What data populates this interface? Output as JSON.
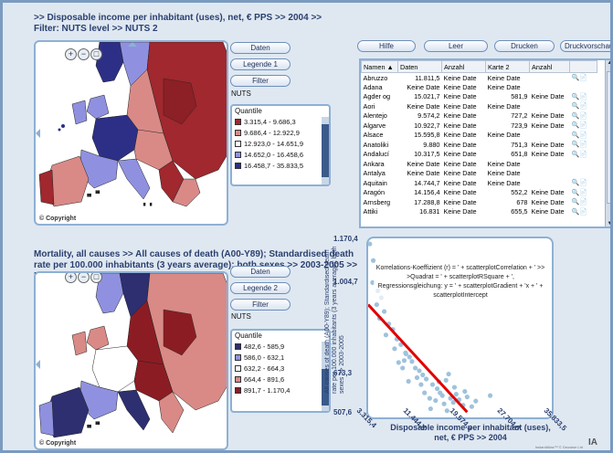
{
  "header": {
    "title_line1": ">> Disposable income per inhabitant (uses), net, € PPS >>  2004 >>",
    "title_line2": "Filter:  NUTS level >>  NUTS 2"
  },
  "toolbar": {
    "help": "Hilfe",
    "empty": "Leer",
    "print": "Drucken",
    "print_preview": "Druckvorschau"
  },
  "map1": {
    "buttons": {
      "data": "Daten",
      "legend": "Legende 1",
      "filter": "Filter"
    },
    "filter_value": "NUTS",
    "legend_title": "Quantile",
    "legend_items": [
      {
        "label": "3.315,4 - 9.686,3",
        "color": "#a0282e"
      },
      {
        "label": "9.686,4 - 12.922,9",
        "color": "#d98a86"
      },
      {
        "label": "12.923,0 - 14.651,9",
        "color": "#ffffff"
      },
      {
        "label": "14.652,0 - 16.458,6",
        "color": "#8f91e0"
      },
      {
        "label": "16.458,7 - 35.833,5",
        "color": "#2d2f86"
      }
    ],
    "copyright": "© Copyright"
  },
  "table": {
    "columns": [
      "Namen ▲",
      "Daten",
      "Anzahl",
      "Karte 2",
      "Anzahl"
    ],
    "rows": [
      [
        "Abruzzo",
        "11.811,5",
        "Keine Date",
        "Keine Date",
        ""
      ],
      [
        "Adana",
        "Keine Date",
        "Keine Date",
        "Keine Date",
        ""
      ],
      [
        "Agder og",
        "15.021,7",
        "Keine Date",
        "581,9",
        "Keine Date"
      ],
      [
        "Aori",
        "Keine Date",
        "Keine Date",
        "Keine Date",
        ""
      ],
      [
        "Alentejo",
        "9.574,2",
        "Keine Date",
        "727,2",
        "Keine Date"
      ],
      [
        "Algarve",
        "10.922,7",
        "Keine Date",
        "723,9",
        "Keine Date"
      ],
      [
        "Alsace",
        "15.595,8",
        "Keine Date",
        "Keine Date",
        ""
      ],
      [
        "Anatoliki",
        "9.880",
        "Keine Date",
        "751,3",
        "Keine Date"
      ],
      [
        "Andalucí",
        "10.317,5",
        "Keine Date",
        "651,8",
        "Keine Date"
      ],
      [
        "Ankara",
        "Keine Date",
        "Keine Date",
        "Keine Date",
        ""
      ],
      [
        "Antalya",
        "Keine Date",
        "Keine Date",
        "Keine Date",
        ""
      ],
      [
        "Aquitain",
        "14.744,7",
        "Keine Date",
        "Keine Date",
        ""
      ],
      [
        "Aragón",
        "14.156,4",
        "Keine Date",
        "552,2",
        "Keine Date"
      ],
      [
        "Arnsberg",
        "17.288,8",
        "Keine Date",
        "678",
        "Keine Date"
      ],
      [
        "Attiki",
        "16.831",
        "Keine Date",
        "655,5",
        "Keine Date"
      ]
    ]
  },
  "header2": {
    "title": "Mortality, all causes >> All causes of death (A00-Y89); Standardised death rate per 100.000 inhabitants (3 years average); both sexes >>  2003-2005 >> Filter:  NUTS level >>  NUTS 2"
  },
  "map2": {
    "buttons": {
      "data": "Daten",
      "legend": "Legende 2",
      "filter": "Filter"
    },
    "filter_value": "NUTS",
    "legend_title": "Quantile",
    "legend_items": [
      {
        "label": "482,6 - 585,9",
        "color": "#2d2f70"
      },
      {
        "label": "586,0 - 632,1",
        "color": "#8f91e0"
      },
      {
        "label": "632,2 - 664,3",
        "color": "#ffffff"
      },
      {
        "label": "664,4 - 891,6",
        "color": "#d98a86"
      },
      {
        "label": "891,7 - 1.170,4",
        "color": "#8c1c24"
      }
    ],
    "copyright": "© Copyright"
  },
  "scatter": {
    "formula_text": "Korrelations-Koeffizient (r) = ' + scatterplotCorrelation + ' >> >Quadrat = ' + scatterplotRSquare + ', Regressionsgleichung: y = ' + scatterplotGradient + 'x + ' + scatterplotIntercept",
    "y_axis_label": "All causes of death (A00-Y89); Standardised death rate per 100.000 inhabitants (3 years average); both sexes >> 2003-2005",
    "x_axis_label": "Disposable income per inhabitant (uses), net, € PPS >>  2004",
    "y_ticks": [
      "1.170,4",
      "1.004,7",
      "673,3",
      "507,6"
    ],
    "x_ticks": [
      "3.315,4",
      "11.444,8",
      "19.574,3",
      "27.704,0",
      "35.833,5"
    ]
  },
  "footer": {
    "credit": "InstantAtlas™  © Geowise Ltd"
  },
  "chart_data": {
    "type": "scatter",
    "xlabel": "Disposable income per inhabitant (uses), net, € PPS >>  2004",
    "ylabel": "All causes of death (A00-Y89); Standardised death rate per 100.000 inhabitants (3 years average); both sexes >> 2003-2005",
    "xlim": [
      3315.4,
      35833.5
    ],
    "ylim": [
      507.6,
      1170.4
    ],
    "x_ticks": [
      3315.4,
      11444.8,
      19574.3,
      27704.0,
      35833.5
    ],
    "y_ticks": [
      507.6,
      673.3,
      1004.7,
      1170.4
    ],
    "regression": {
      "x": [
        3315.4,
        20500
      ],
      "y": [
        930,
        540
      ]
    },
    "points": [
      {
        "x": 3600,
        "y": 1150
      },
      {
        "x": 4200,
        "y": 1090
      },
      {
        "x": 4100,
        "y": 1010
      },
      {
        "x": 5000,
        "y": 980
      },
      {
        "x": 5600,
        "y": 955
      },
      {
        "x": 4800,
        "y": 930
      },
      {
        "x": 6100,
        "y": 905
      },
      {
        "x": 5300,
        "y": 880
      },
      {
        "x": 6900,
        "y": 860
      },
      {
        "x": 7600,
        "y": 840
      },
      {
        "x": 6400,
        "y": 820
      },
      {
        "x": 8300,
        "y": 805
      },
      {
        "x": 9000,
        "y": 785
      },
      {
        "x": 7900,
        "y": 770
      },
      {
        "x": 9800,
        "y": 755
      },
      {
        "x": 10500,
        "y": 740
      },
      {
        "x": 9574.2,
        "y": 727.2
      },
      {
        "x": 10922.7,
        "y": 723.9
      },
      {
        "x": 9880,
        "y": 751.3
      },
      {
        "x": 10317.5,
        "y": 651.8
      },
      {
        "x": 11500,
        "y": 700
      },
      {
        "x": 12200,
        "y": 690
      },
      {
        "x": 12800,
        "y": 675
      },
      {
        "x": 13400,
        "y": 660
      },
      {
        "x": 14156.4,
        "y": 552.2
      },
      {
        "x": 14500,
        "y": 640
      },
      {
        "x": 15021.7,
        "y": 581.9
      },
      {
        "x": 15300,
        "y": 625
      },
      {
        "x": 15800,
        "y": 610
      },
      {
        "x": 16200,
        "y": 600
      },
      {
        "x": 16831,
        "y": 655.5
      },
      {
        "x": 17288.8,
        "y": 678
      },
      {
        "x": 17600,
        "y": 590
      },
      {
        "x": 18100,
        "y": 575
      },
      {
        "x": 18600,
        "y": 605
      },
      {
        "x": 19100,
        "y": 585
      },
      {
        "x": 19800,
        "y": 565
      },
      {
        "x": 20500,
        "y": 595
      },
      {
        "x": 21300,
        "y": 560
      },
      {
        "x": 22000,
        "y": 580
      },
      {
        "x": 13100,
        "y": 610
      },
      {
        "x": 14000,
        "y": 590
      },
      {
        "x": 16500,
        "y": 570
      },
      {
        "x": 12500,
        "y": 640
      },
      {
        "x": 11800,
        "y": 665
      },
      {
        "x": 15600,
        "y": 650
      },
      {
        "x": 18300,
        "y": 630
      },
      {
        "x": 20100,
        "y": 615
      },
      {
        "x": 9300,
        "y": 700
      },
      {
        "x": 8600,
        "y": 720
      },
      {
        "x": 17000,
        "y": 545
      },
      {
        "x": 24500,
        "y": 600
      }
    ]
  }
}
